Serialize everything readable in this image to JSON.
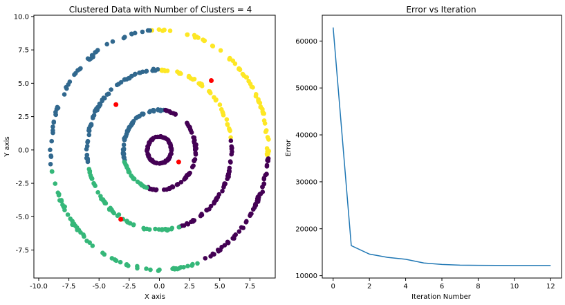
{
  "chart_data": [
    {
      "type": "scatter",
      "title": "Clustered Data with Number of Clusters = 4",
      "xlabel": "X axis",
      "ylabel": "Y axis",
      "xlim": [
        -10.4,
        9.6
      ],
      "ylim": [
        -9.6,
        10.1
      ],
      "xticks": [
        -10.0,
        -7.5,
        -5.0,
        -2.5,
        0.0,
        2.5,
        5.0,
        7.5
      ],
      "yticks": [
        -7.5,
        -5.0,
        -2.5,
        0.0,
        2.5,
        5.0,
        7.5,
        10.0
      ],
      "grid": false,
      "cluster_colors": {
        "0": "#440154",
        "1": "#31688e",
        "2": "#35b779",
        "3": "#fde725"
      },
      "rings": [
        {
          "radius": 1.0,
          "noise": 0.08,
          "count": 90
        },
        {
          "radius": 3.0,
          "noise": 0.12,
          "count": 150
        },
        {
          "radius": 6.0,
          "noise": 0.15,
          "count": 200
        },
        {
          "radius": 9.0,
          "noise": 0.2,
          "count": 220
        }
      ],
      "centroids": {
        "color": "#ff0000",
        "points": [
          [
            4.3,
            5.2
          ],
          [
            -3.6,
            3.4
          ],
          [
            1.6,
            -0.9
          ],
          [
            -3.2,
            -5.2
          ]
        ]
      }
    },
    {
      "type": "line",
      "title": "Error vs Iteration",
      "xlabel": "Iteration Number",
      "ylabel": "Error",
      "xlim": [
        -0.6,
        12.6
      ],
      "ylim": [
        9500,
        65500
      ],
      "xticks": [
        0,
        2,
        4,
        6,
        8,
        10,
        12
      ],
      "yticks": [
        10000,
        20000,
        30000,
        40000,
        50000,
        60000
      ],
      "grid": false,
      "series": [
        {
          "color": "#1f77b4",
          "x": [
            0,
            1,
            2,
            3,
            4,
            5,
            6,
            7,
            8,
            9,
            10,
            11,
            12
          ],
          "y": [
            62900,
            16400,
            14600,
            13900,
            13500,
            12700,
            12400,
            12250,
            12200,
            12180,
            12170,
            12170,
            12170
          ]
        }
      ]
    }
  ]
}
